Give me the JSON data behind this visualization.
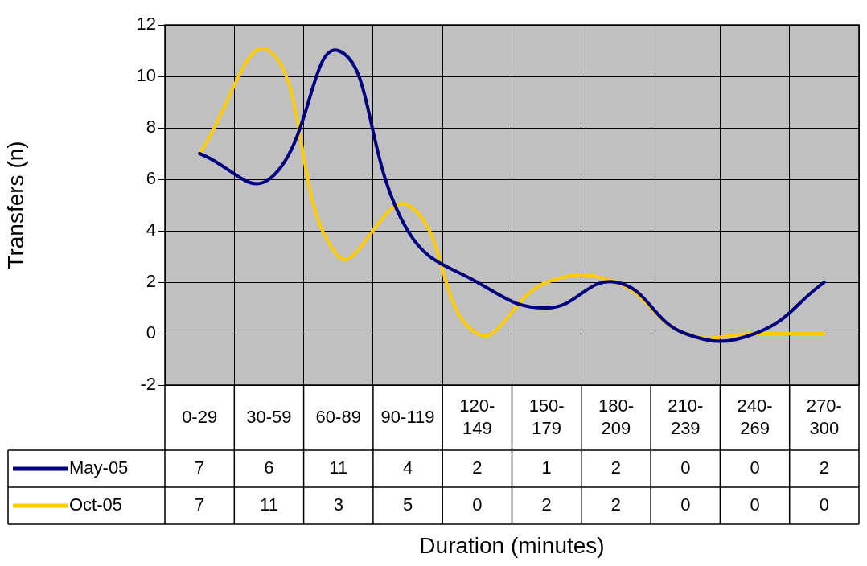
{
  "chart_data": {
    "type": "line",
    "xlabel": "Duration (minutes)",
    "ylabel": "Transfers (n)",
    "categories": [
      "0-29",
      "30-59",
      "60-89",
      "90-119",
      "120-149",
      "150-179",
      "180-209",
      "210-239",
      "240-269",
      "270-300"
    ],
    "series": [
      {
        "name": "May-05",
        "color": "#000080",
        "values": [
          7,
          6,
          11,
          4,
          2,
          1,
          2,
          0,
          0,
          2
        ]
      },
      {
        "name": "Oct-05",
        "color": "#ffcc00",
        "values": [
          7,
          11,
          3,
          5,
          0,
          2,
          2,
          0,
          0,
          0
        ]
      }
    ],
    "ylim": [
      -2,
      12
    ],
    "yticks": [
      -2,
      0,
      2,
      4,
      6,
      8,
      10,
      12
    ],
    "grid": true,
    "legend": "bottom",
    "data_labels": true,
    "marker": "none",
    "line_style": "solid"
  }
}
